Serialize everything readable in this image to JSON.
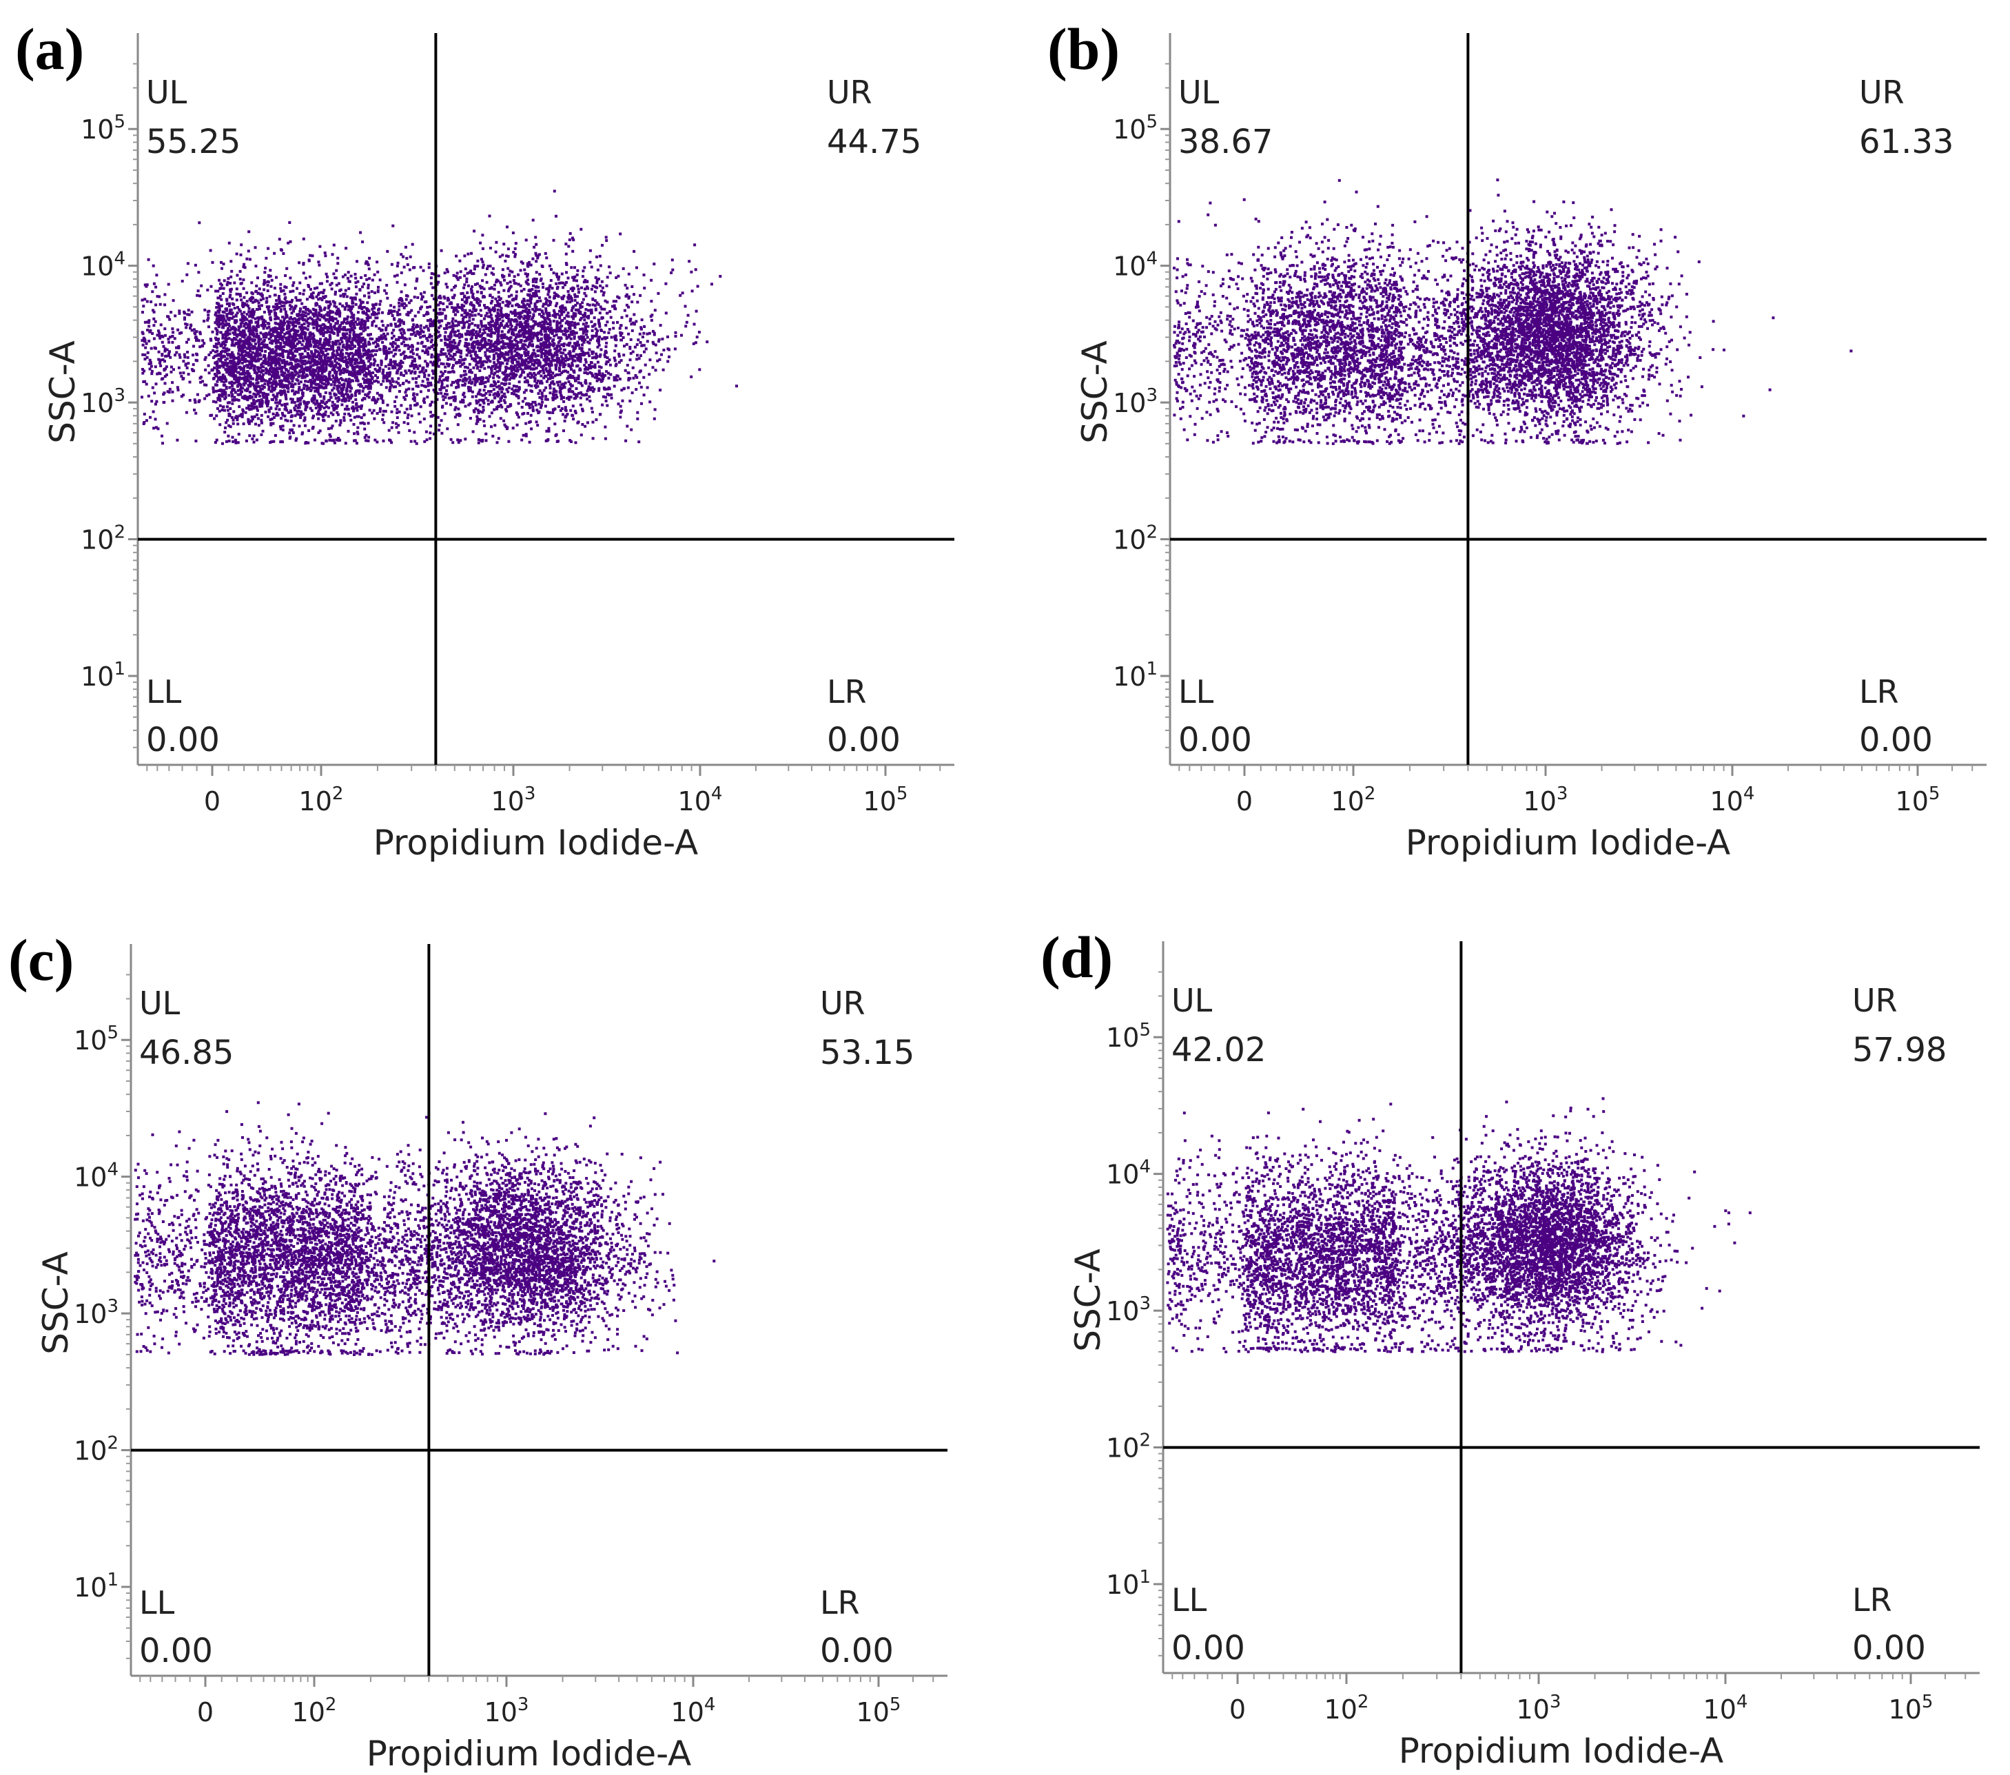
{
  "figure": {
    "dot_color": "#4B0082",
    "line_color": "#000000"
  },
  "chart_data": [
    {
      "type": "scatter",
      "panel": "(a)",
      "xlabel": "Propidium Iodide-A",
      "ylabel": "SSC-A",
      "x_scale": "biexponential",
      "y_scale": "log",
      "x_ticks": [
        "0",
        "10^2",
        "10^3",
        "10^4",
        "10^5"
      ],
      "y_ticks": [
        "10^1",
        "10^2",
        "10^3",
        "10^4",
        "10^5"
      ],
      "quadrant_gate": {
        "x": 400,
        "y": 100
      },
      "quadrants": [
        {
          "name": "UL",
          "value": "55.25"
        },
        {
          "name": "UR",
          "value": "44.75"
        },
        {
          "name": "LL",
          "value": "0.00"
        },
        {
          "name": "LR",
          "value": "0.00"
        }
      ],
      "clusters": [
        {
          "x_center": 80,
          "y_center": 2200,
          "x_spread": 1.4,
          "y_spread": 0.28,
          "weight": 0.55
        },
        {
          "x_center": 1200,
          "y_center": 2800,
          "x_spread": 0.7,
          "y_spread": 0.3,
          "weight": 0.45
        }
      ]
    },
    {
      "type": "scatter",
      "panel": "(b)",
      "xlabel": "Propidium Iodide-A",
      "ylabel": "SSC-A",
      "x_scale": "biexponential",
      "y_scale": "log",
      "x_ticks": [
        "0",
        "10^2",
        "10^3",
        "10^4",
        "10^5"
      ],
      "y_ticks": [
        "10^1",
        "10^2",
        "10^3",
        "10^4",
        "10^5"
      ],
      "quadrant_gate": {
        "x": 400,
        "y": 100
      },
      "quadrants": [
        {
          "name": "UL",
          "value": "38.67"
        },
        {
          "name": "UR",
          "value": "61.33"
        },
        {
          "name": "LL",
          "value": "0.00"
        },
        {
          "name": "LR",
          "value": "0.00"
        }
      ],
      "clusters": [
        {
          "x_center": 120,
          "y_center": 2500,
          "x_spread": 1.4,
          "y_spread": 0.35,
          "weight": 0.39
        },
        {
          "x_center": 1100,
          "y_center": 3200,
          "x_spread": 0.55,
          "y_spread": 0.32,
          "weight": 0.61
        }
      ]
    },
    {
      "type": "scatter",
      "panel": "(c)",
      "xlabel": "Propidium Iodide-A",
      "ylabel": "SSC-A",
      "x_scale": "biexponential",
      "y_scale": "log",
      "x_ticks": [
        "0",
        "10^2",
        "10^3",
        "10^4",
        "10^5"
      ],
      "y_ticks": [
        "10^1",
        "10^2",
        "10^3",
        "10^4",
        "10^5"
      ],
      "quadrant_gate": {
        "x": 400,
        "y": 100
      },
      "quadrants": [
        {
          "name": "UL",
          "value": "46.85"
        },
        {
          "name": "UR",
          "value": "53.15"
        },
        {
          "name": "LL",
          "value": "0.00"
        },
        {
          "name": "LR",
          "value": "0.00"
        }
      ],
      "clusters": [
        {
          "x_center": 100,
          "y_center": 2500,
          "x_spread": 1.4,
          "y_spread": 0.34,
          "weight": 0.47
        },
        {
          "x_center": 1300,
          "y_center": 3000,
          "x_spread": 0.6,
          "y_spread": 0.32,
          "weight": 0.53
        }
      ]
    },
    {
      "type": "scatter",
      "panel": "(d)",
      "xlabel": "Propidium Iodide-A",
      "ylabel": "SSC-A",
      "x_scale": "biexponential",
      "y_scale": "log",
      "x_ticks": [
        "0",
        "10^2",
        "10^3",
        "10^4",
        "10^5"
      ],
      "y_ticks": [
        "10^1",
        "10^2",
        "10^3",
        "10^4",
        "10^5"
      ],
      "quadrant_gate": {
        "x": 400,
        "y": 100
      },
      "quadrants": [
        {
          "name": "UL",
          "value": "42.02"
        },
        {
          "name": "UR",
          "value": "57.98"
        },
        {
          "name": "LL",
          "value": "0.00"
        },
        {
          "name": "LR",
          "value": "0.00"
        }
      ],
      "clusters": [
        {
          "x_center": 110,
          "y_center": 2400,
          "x_spread": 1.4,
          "y_spread": 0.34,
          "weight": 0.42
        },
        {
          "x_center": 1100,
          "y_center": 3100,
          "x_spread": 0.55,
          "y_spread": 0.32,
          "weight": 0.58
        }
      ]
    }
  ]
}
